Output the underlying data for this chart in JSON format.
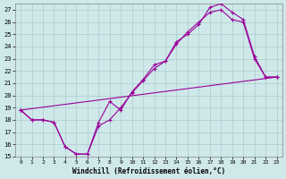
{
  "xlabel": "Windchill (Refroidissement éolien,°C)",
  "bg_color": "#cfe8ea",
  "grid_color": "#aacccc",
  "line_color": "#990099",
  "xlim": [
    -0.5,
    23.5
  ],
  "ylim": [
    15,
    27.5
  ],
  "xticks": [
    0,
    1,
    2,
    3,
    4,
    5,
    6,
    7,
    8,
    9,
    10,
    11,
    12,
    13,
    14,
    15,
    16,
    17,
    18,
    19,
    20,
    21,
    22,
    23
  ],
  "yticks": [
    15,
    16,
    17,
    18,
    19,
    20,
    21,
    22,
    23,
    24,
    25,
    26,
    27
  ],
  "curve1_x": [
    0,
    1,
    2,
    3,
    4,
    5,
    6,
    7,
    8,
    9,
    10,
    11,
    12,
    13,
    14,
    15,
    16,
    17,
    18,
    19,
    20,
    21,
    22,
    23
  ],
  "curve1_y": [
    18.8,
    18.0,
    18.0,
    17.8,
    15.8,
    15.2,
    15.2,
    17.8,
    19.5,
    18.8,
    20.3,
    21.3,
    22.5,
    22.8,
    24.4,
    25.0,
    25.8,
    27.2,
    27.5,
    26.8,
    26.2,
    23.2,
    21.5,
    21.5
  ],
  "curve2_x": [
    0,
    1,
    2,
    3,
    4,
    5,
    6,
    7,
    8,
    9,
    10,
    11,
    12,
    13,
    14,
    15,
    16,
    17,
    18,
    19,
    20,
    21,
    22,
    23
  ],
  "curve2_y": [
    18.8,
    18.0,
    18.0,
    17.8,
    15.8,
    15.2,
    15.2,
    17.5,
    18.0,
    19.0,
    20.2,
    21.2,
    22.2,
    22.8,
    24.2,
    25.2,
    26.0,
    26.8,
    27.0,
    26.2,
    26.0,
    23.0,
    21.5,
    21.5
  ],
  "curve3_x": [
    0,
    23
  ],
  "curve3_y": [
    18.8,
    21.5
  ]
}
